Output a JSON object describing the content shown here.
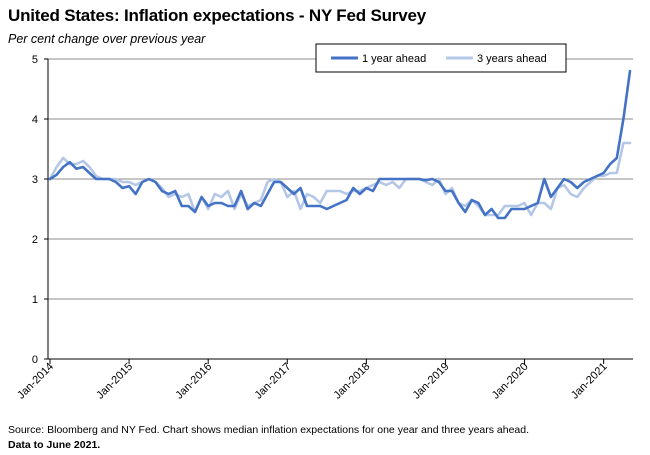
{
  "title": "United States: Inflation expectations - NY Fed Survey",
  "subtitle": "Per cent change over previous year",
  "source": "Source: Bloomberg and NY Fed. Chart shows median inflation expectations for one year and three years ahead.",
  "data_note": "Data to June 2021.",
  "chart_data": {
    "type": "line",
    "title": "United States: Inflation expectations - NY Fed Survey",
    "ylabel": "Per cent change over previous year",
    "xlabel": "",
    "ylim": [
      0,
      5
    ],
    "y_ticks": [
      0,
      1,
      2,
      3,
      4,
      5
    ],
    "x_tick_labels": [
      "Jan-2014",
      "Jan-2015",
      "Jan-2016",
      "Jan-2017",
      "Jan-2018",
      "Jan-2019",
      "Jan-2020",
      "Jan-2021"
    ],
    "x_start": "Jan-2014",
    "x_end": "Jun-2021",
    "frequency": "monthly",
    "grid": true,
    "legend_position": "top-right",
    "series": [
      {
        "name": "1 year ahead",
        "color": "#4472c4",
        "values": [
          3.0,
          3.07,
          3.2,
          3.28,
          3.17,
          3.2,
          3.1,
          3.0,
          3.0,
          3.0,
          2.95,
          2.85,
          2.88,
          2.75,
          2.95,
          3.0,
          2.95,
          2.8,
          2.75,
          2.8,
          2.55,
          2.55,
          2.45,
          2.7,
          2.55,
          2.6,
          2.6,
          2.55,
          2.55,
          2.8,
          2.5,
          2.6,
          2.55,
          2.75,
          2.95,
          2.95,
          2.85,
          2.75,
          2.85,
          2.55,
          2.55,
          2.55,
          2.5,
          2.55,
          2.6,
          2.65,
          2.85,
          2.75,
          2.85,
          2.8,
          3.0,
          3.0,
          3.0,
          3.0,
          3.0,
          3.0,
          3.0,
          2.98,
          3.0,
          2.95,
          2.8,
          2.8,
          2.6,
          2.45,
          2.65,
          2.6,
          2.4,
          2.5,
          2.35,
          2.35,
          2.5,
          2.5,
          2.5,
          2.55,
          2.6,
          3.0,
          2.7,
          2.85,
          3.0,
          2.95,
          2.85,
          2.95,
          3.0,
          3.05,
          3.1,
          3.25,
          3.35,
          4.0,
          4.8
        ]
      },
      {
        "name": "3 years ahead",
        "color": "#b4c7e7",
        "values": [
          3.0,
          3.2,
          3.35,
          3.25,
          3.25,
          3.3,
          3.2,
          3.05,
          3.0,
          3.0,
          3.0,
          2.95,
          2.95,
          2.9,
          2.95,
          3.0,
          2.95,
          2.85,
          2.7,
          2.75,
          2.7,
          2.75,
          2.45,
          2.7,
          2.5,
          2.75,
          2.7,
          2.8,
          2.5,
          2.75,
          2.55,
          2.6,
          2.65,
          2.95,
          3.0,
          2.95,
          2.7,
          2.8,
          2.5,
          2.75,
          2.7,
          2.6,
          2.8,
          2.8,
          2.8,
          2.75,
          2.8,
          2.8,
          2.85,
          2.9,
          2.95,
          2.9,
          2.95,
          2.85,
          3.0,
          3.0,
          3.0,
          2.95,
          2.9,
          3.0,
          2.75,
          2.85,
          2.6,
          2.55,
          2.65,
          2.55,
          2.4,
          2.4,
          2.4,
          2.55,
          2.55,
          2.55,
          2.6,
          2.4,
          2.6,
          2.6,
          2.5,
          2.85,
          2.9,
          2.75,
          2.7,
          2.85,
          2.95,
          3.05,
          3.05,
          3.1,
          3.1,
          3.6,
          3.6
        ]
      }
    ]
  }
}
